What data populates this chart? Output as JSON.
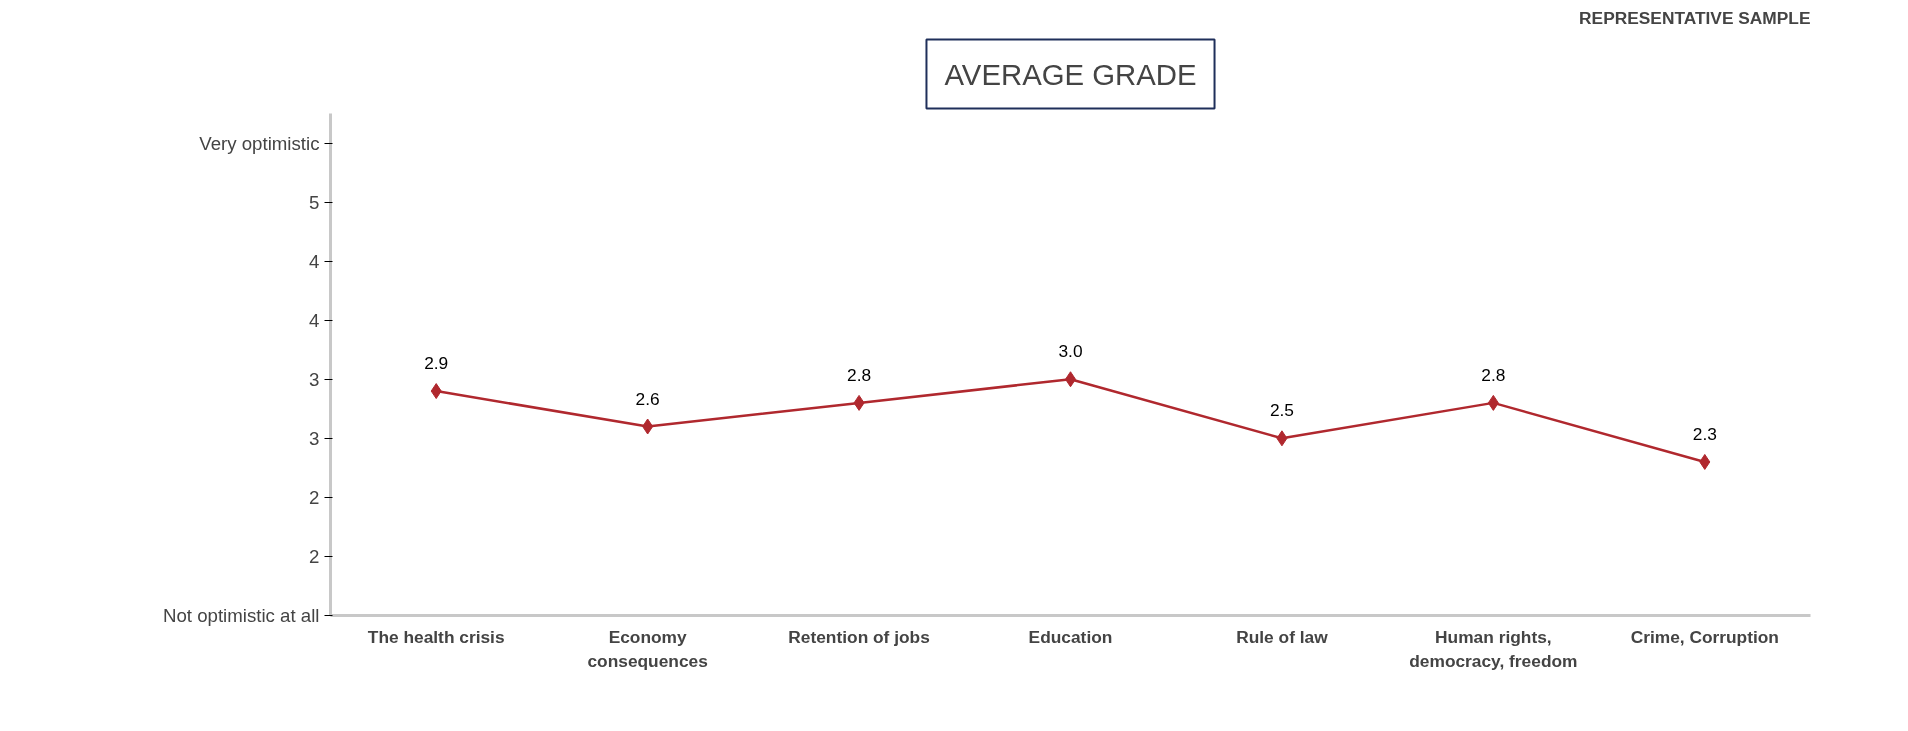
{
  "chart_data": {
    "type": "line",
    "title": "AVERAGE GRADE",
    "annotations": [
      "REPRESENTATIVE SAMPLE"
    ],
    "categories": [
      "The health crisis",
      "Economy consequences",
      "Retention of jobs",
      "Education",
      "Rule of law",
      "Human rights, democracy, freedom",
      "Crime, Corruption"
    ],
    "series": [
      {
        "color": "#b0282e",
        "values": [
          2.9,
          2.6,
          2.8,
          3.0,
          2.5,
          2.8,
          2.3
        ]
      }
    ],
    "ylim": [
      1,
      5.25
    ],
    "yticks": [
      {
        "value": 1,
        "label": "Not optimistic at all"
      },
      {
        "value": 1.5,
        "label": "2"
      },
      {
        "value": 2,
        "label": "2"
      },
      {
        "value": 2.5,
        "label": "3"
      },
      {
        "value": 3,
        "label": "3"
      },
      {
        "value": 3.5,
        "label": "4"
      },
      {
        "value": 4,
        "label": "4"
      },
      {
        "value": 4.5,
        "label": "5"
      },
      {
        "value": 5,
        "label": "Very optimistic"
      }
    ],
    "value_labels": [
      "2.9",
      "2.6",
      "2.8",
      "3.0",
      "2.5",
      "2.8",
      "2.3"
    ],
    "marker": "diamond",
    "line_style": "solid",
    "grid": false
  }
}
